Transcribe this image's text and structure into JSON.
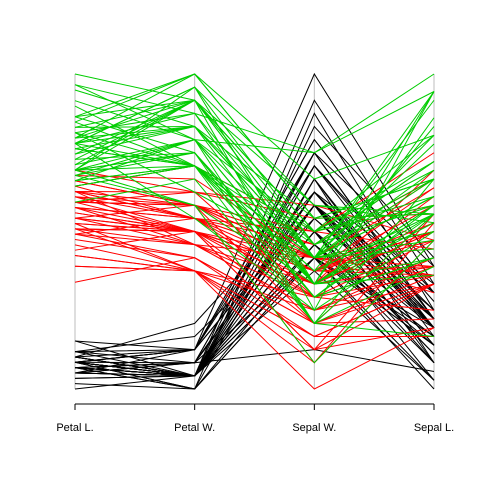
{
  "chart_data": {
    "type": "parallel",
    "axes": [
      "Petal L.",
      "Petal W.",
      "Sepal W.",
      "Sepal L."
    ],
    "ranges": [
      [
        1,
        6.9
      ],
      [
        0.1,
        2.5
      ],
      [
        2,
        4.4
      ],
      [
        4.3,
        7.9
      ]
    ],
    "series": [
      {
        "color": "#000000",
        "values": [
          [
            1.4,
            0.2,
            3.5,
            5.1
          ],
          [
            1.4,
            0.2,
            3.0,
            4.9
          ],
          [
            1.3,
            0.2,
            3.2,
            4.7
          ],
          [
            1.5,
            0.2,
            3.1,
            4.6
          ],
          [
            1.4,
            0.2,
            3.6,
            5.0
          ],
          [
            1.7,
            0.4,
            3.9,
            5.4
          ],
          [
            1.4,
            0.3,
            3.4,
            4.6
          ],
          [
            1.5,
            0.2,
            3.4,
            5.0
          ],
          [
            1.4,
            0.2,
            2.9,
            4.4
          ],
          [
            1.5,
            0.1,
            3.1,
            4.9
          ],
          [
            1.5,
            0.2,
            3.7,
            5.4
          ],
          [
            1.6,
            0.2,
            3.4,
            4.8
          ],
          [
            1.4,
            0.1,
            3.0,
            4.8
          ],
          [
            1.1,
            0.1,
            3.0,
            4.3
          ],
          [
            1.2,
            0.2,
            4.0,
            5.8
          ],
          [
            1.5,
            0.4,
            4.4,
            5.7
          ],
          [
            1.3,
            0.4,
            3.9,
            5.4
          ],
          [
            1.4,
            0.3,
            3.5,
            5.1
          ],
          [
            1.7,
            0.3,
            3.8,
            5.7
          ],
          [
            1.5,
            0.3,
            3.8,
            5.1
          ],
          [
            1.7,
            0.2,
            3.4,
            5.4
          ],
          [
            1.5,
            0.4,
            3.7,
            5.1
          ],
          [
            1.0,
            0.2,
            3.6,
            4.6
          ],
          [
            1.7,
            0.5,
            3.3,
            5.1
          ],
          [
            1.9,
            0.2,
            3.4,
            4.8
          ],
          [
            1.6,
            0.2,
            3.0,
            5.0
          ],
          [
            1.6,
            0.4,
            3.4,
            5.0
          ],
          [
            1.5,
            0.2,
            3.5,
            5.2
          ],
          [
            1.4,
            0.2,
            3.4,
            5.2
          ],
          [
            1.6,
            0.2,
            3.2,
            4.7
          ],
          [
            1.6,
            0.2,
            3.1,
            4.8
          ],
          [
            1.5,
            0.4,
            3.4,
            5.4
          ],
          [
            1.5,
            0.1,
            4.1,
            5.2
          ],
          [
            1.4,
            0.2,
            4.2,
            5.5
          ],
          [
            1.5,
            0.2,
            3.1,
            4.9
          ],
          [
            1.2,
            0.2,
            3.2,
            5.0
          ],
          [
            1.3,
            0.2,
            3.5,
            5.5
          ],
          [
            1.4,
            0.1,
            3.6,
            4.9
          ],
          [
            1.3,
            0.2,
            3.0,
            4.4
          ],
          [
            1.5,
            0.2,
            3.4,
            5.1
          ],
          [
            1.3,
            0.3,
            3.5,
            5.0
          ],
          [
            1.3,
            0.3,
            2.3,
            4.5
          ],
          [
            1.3,
            0.2,
            3.2,
            4.4
          ],
          [
            1.6,
            0.6,
            3.5,
            5.0
          ],
          [
            1.9,
            0.4,
            3.8,
            5.1
          ],
          [
            1.4,
            0.3,
            3.0,
            4.8
          ],
          [
            1.6,
            0.2,
            3.8,
            5.1
          ],
          [
            1.4,
            0.2,
            3.2,
            4.6
          ],
          [
            1.5,
            0.2,
            3.7,
            5.3
          ],
          [
            1.4,
            0.2,
            3.3,
            5.0
          ]
        ]
      },
      {
        "color": "#ff0000",
        "values": [
          [
            4.7,
            1.4,
            3.2,
            7.0
          ],
          [
            4.5,
            1.5,
            3.2,
            6.4
          ],
          [
            4.9,
            1.5,
            3.1,
            6.9
          ],
          [
            4.0,
            1.3,
            2.3,
            5.5
          ],
          [
            4.6,
            1.5,
            2.8,
            6.5
          ],
          [
            4.5,
            1.3,
            2.8,
            5.7
          ],
          [
            4.7,
            1.6,
            3.3,
            6.3
          ],
          [
            3.3,
            1.0,
            2.4,
            4.9
          ],
          [
            4.6,
            1.3,
            2.9,
            6.6
          ],
          [
            3.9,
            1.4,
            2.7,
            5.2
          ],
          [
            3.5,
            1.0,
            2.0,
            5.0
          ],
          [
            4.2,
            1.5,
            3.0,
            5.9
          ],
          [
            4.0,
            1.0,
            2.2,
            6.0
          ],
          [
            4.7,
            1.4,
            2.9,
            6.1
          ],
          [
            3.6,
            1.3,
            2.9,
            5.6
          ],
          [
            4.4,
            1.4,
            3.1,
            6.7
          ],
          [
            4.5,
            1.5,
            3.0,
            5.6
          ],
          [
            4.1,
            1.0,
            2.7,
            5.8
          ],
          [
            4.5,
            1.5,
            2.2,
            6.2
          ],
          [
            3.9,
            1.1,
            2.5,
            5.6
          ],
          [
            4.8,
            1.8,
            3.2,
            5.9
          ],
          [
            4.0,
            1.3,
            2.8,
            6.1
          ],
          [
            4.9,
            1.5,
            2.5,
            6.3
          ],
          [
            4.7,
            1.2,
            2.8,
            6.1
          ],
          [
            4.3,
            1.3,
            2.9,
            6.4
          ],
          [
            4.4,
            1.4,
            3.0,
            6.6
          ],
          [
            4.8,
            1.4,
            2.8,
            6.8
          ],
          [
            5.0,
            1.7,
            3.0,
            6.7
          ],
          [
            4.5,
            1.5,
            2.9,
            6.0
          ],
          [
            3.5,
            1.0,
            2.6,
            5.7
          ],
          [
            3.8,
            1.1,
            2.4,
            5.5
          ],
          [
            3.7,
            1.0,
            2.4,
            5.5
          ],
          [
            3.9,
            1.2,
            2.7,
            5.8
          ],
          [
            5.1,
            1.6,
            2.7,
            6.0
          ],
          [
            4.5,
            1.5,
            3.0,
            5.4
          ],
          [
            4.5,
            1.6,
            3.4,
            6.0
          ],
          [
            4.7,
            1.5,
            3.1,
            6.7
          ],
          [
            4.4,
            1.3,
            2.3,
            6.3
          ],
          [
            4.1,
            1.3,
            3.0,
            5.6
          ],
          [
            4.0,
            1.3,
            2.5,
            5.5
          ],
          [
            4.4,
            1.2,
            2.6,
            5.5
          ],
          [
            4.6,
            1.4,
            3.0,
            6.1
          ],
          [
            4.0,
            1.2,
            2.6,
            5.8
          ],
          [
            3.3,
            1.0,
            2.3,
            5.0
          ],
          [
            4.2,
            1.3,
            2.7,
            5.6
          ],
          [
            4.2,
            1.2,
            3.0,
            5.7
          ],
          [
            4.2,
            1.3,
            2.9,
            5.7
          ],
          [
            4.3,
            1.3,
            2.9,
            6.2
          ],
          [
            3.0,
            1.1,
            2.5,
            5.1
          ],
          [
            4.1,
            1.3,
            2.8,
            5.7
          ]
        ]
      },
      {
        "color": "#00cd00",
        "values": [
          [
            6.0,
            2.5,
            3.3,
            6.3
          ],
          [
            5.1,
            1.9,
            2.7,
            5.8
          ],
          [
            5.9,
            2.1,
            3.0,
            7.1
          ],
          [
            5.6,
            1.8,
            2.9,
            6.3
          ],
          [
            5.8,
            2.2,
            3.0,
            6.5
          ],
          [
            6.6,
            2.1,
            3.0,
            7.6
          ],
          [
            4.5,
            1.7,
            2.5,
            4.9
          ],
          [
            6.3,
            1.8,
            2.9,
            7.3
          ],
          [
            5.8,
            1.8,
            2.5,
            6.7
          ],
          [
            6.1,
            2.5,
            3.6,
            7.2
          ],
          [
            5.1,
            2.0,
            3.2,
            6.5
          ],
          [
            5.3,
            1.9,
            2.7,
            6.4
          ],
          [
            5.5,
            2.1,
            3.0,
            6.8
          ],
          [
            5.0,
            2.0,
            2.5,
            5.7
          ],
          [
            5.1,
            2.4,
            2.8,
            5.8
          ],
          [
            5.3,
            2.3,
            3.2,
            6.4
          ],
          [
            5.5,
            1.8,
            3.0,
            6.5
          ],
          [
            6.7,
            2.2,
            3.8,
            7.7
          ],
          [
            6.9,
            2.3,
            2.6,
            7.7
          ],
          [
            5.0,
            1.5,
            2.2,
            6.0
          ],
          [
            5.7,
            2.3,
            3.2,
            6.9
          ],
          [
            4.9,
            2.0,
            2.8,
            5.6
          ],
          [
            6.7,
            2.0,
            2.8,
            7.7
          ],
          [
            4.9,
            1.8,
            2.7,
            6.3
          ],
          [
            5.7,
            2.1,
            3.3,
            6.7
          ],
          [
            6.0,
            1.8,
            3.2,
            7.2
          ],
          [
            4.8,
            1.8,
            2.8,
            6.2
          ],
          [
            4.9,
            1.8,
            3.0,
            6.1
          ],
          [
            5.6,
            2.1,
            2.8,
            6.4
          ],
          [
            5.8,
            1.6,
            3.0,
            7.2
          ],
          [
            6.1,
            1.9,
            2.8,
            7.4
          ],
          [
            6.4,
            2.0,
            3.8,
            7.9
          ],
          [
            5.6,
            2.2,
            2.8,
            6.4
          ],
          [
            5.1,
            1.5,
            2.8,
            6.3
          ],
          [
            5.6,
            1.4,
            2.6,
            6.1
          ],
          [
            6.1,
            2.3,
            3.0,
            7.7
          ],
          [
            5.6,
            2.4,
            3.4,
            6.3
          ],
          [
            5.5,
            1.8,
            3.1,
            6.4
          ],
          [
            4.8,
            1.8,
            3.0,
            6.0
          ],
          [
            5.4,
            2.1,
            3.1,
            6.9
          ],
          [
            5.6,
            2.4,
            3.1,
            6.7
          ],
          [
            5.1,
            2.3,
            3.1,
            6.9
          ],
          [
            5.1,
            1.9,
            2.7,
            5.8
          ],
          [
            5.9,
            2.3,
            3.2,
            6.8
          ],
          [
            5.7,
            2.5,
            3.3,
            6.7
          ],
          [
            5.2,
            2.3,
            3.0,
            6.7
          ],
          [
            5.0,
            1.9,
            2.5,
            6.3
          ],
          [
            5.2,
            2.0,
            3.0,
            6.5
          ],
          [
            5.4,
            2.3,
            3.4,
            6.2
          ],
          [
            5.1,
            1.8,
            3.0,
            5.9
          ]
        ]
      }
    ]
  }
}
